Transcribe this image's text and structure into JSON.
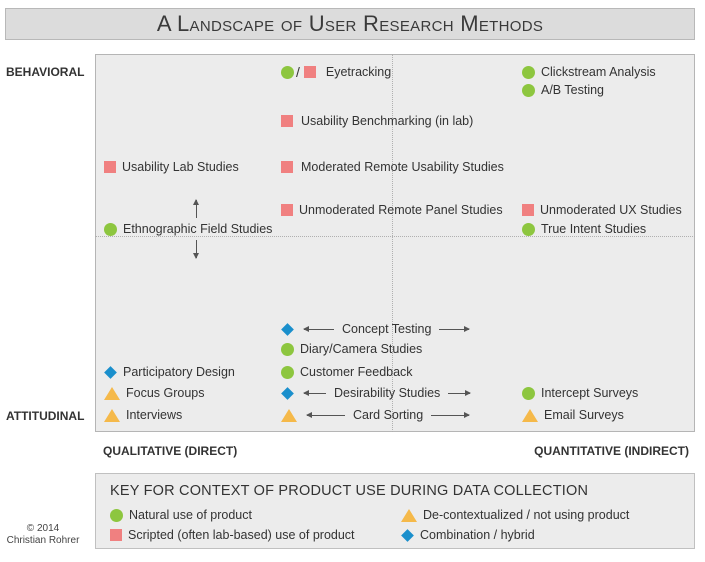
{
  "title": "A Landscape of User Research Methods",
  "axes": {
    "y_top": "BEHAVIORAL",
    "y_bottom": "ATTITUDINAL",
    "x_left": "QUALITATIVE (DIRECT)",
    "x_right": "QUANTITATIVE (INDIRECT)"
  },
  "methods": {
    "eyetracking": "Eyetracking",
    "clickstream": "Clickstream Analysis",
    "ab_testing": "A/B Testing",
    "usability_benchmarking": "Usability Benchmarking (in lab)",
    "usability_lab": "Usability Lab Studies",
    "moderated_remote": "Moderated Remote Usability Studies",
    "unmoderated_panel": "Unmoderated Remote Panel Studies",
    "unmoderated_ux": "Unmoderated UX Studies",
    "ethnographic": "Ethnographic Field Studies",
    "true_intent": "True Intent Studies",
    "concept_testing": "Concept Testing",
    "diary_camera": "Diary/Camera Studies",
    "participatory": "Participatory Design",
    "customer_feedback": "Customer Feedback",
    "focus_groups": "Focus Groups",
    "desirability": "Desirability Studies",
    "intercept": "Intercept Surveys",
    "interviews": "Interviews",
    "card_sorting": "Card Sorting",
    "email_surveys": "Email Surveys"
  },
  "key": {
    "title": "KEY FOR CONTEXT OF PRODUCT USE DURING DATA COLLECTION",
    "natural": "Natural use of product",
    "scripted": "Scripted (often lab-based) use of product",
    "decontextualized": "De-contextualized / not using product",
    "combination": "Combination / hybrid"
  },
  "marker_colors": {
    "natural": "#8dc63f",
    "scripted": "#f08080",
    "decontextualized": "#f5b94a",
    "combination": "#1a8fcc"
  },
  "copyright": {
    "line1": "© 2014",
    "line2": "Christian Rohrer"
  }
}
